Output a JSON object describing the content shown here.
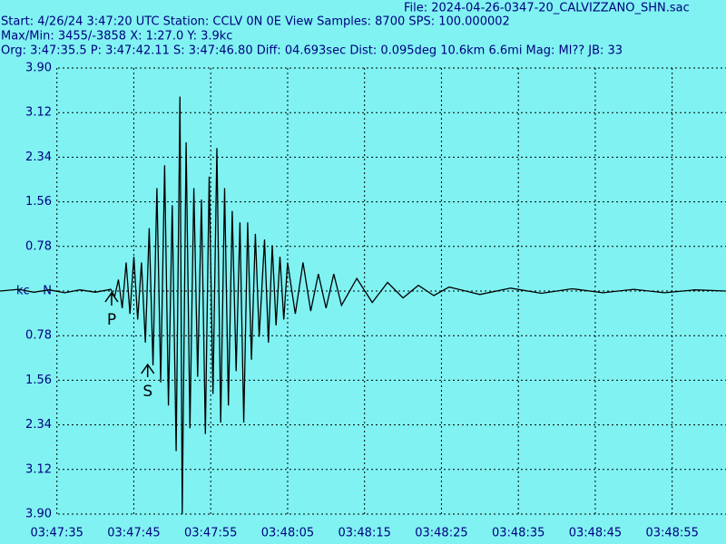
{
  "chart_data": {
    "type": "line",
    "header": {
      "file": "File: 2024-04-26-0347-20_CALVIZZANO_SHN.sac",
      "start": "Start: 4/26/24  3:47:20 UTC Station: CCLV 0N 0E View Samples: 8700  SPS: 100.000002",
      "maxmin": "Max/Min: 3455/-3858 X: 1:27.0 Y: 3.9kc",
      "origin": "Org: 3:47:35.5 P: 3:47:42.11 S: 3:47:46.80 Diff: 04.693sec Dist: 0.095deg 10.6km 6.6mi  Mag: Ml?? JB: 33"
    },
    "y_unit": "kc",
    "color": "#000000",
    "grid": true,
    "xlim": [
      7.6,
      102
    ],
    "ylim": [
      -3.9,
      3.9
    ],
    "xticks": [
      {
        "value": 15,
        "label": "03:47:35"
      },
      {
        "value": 25,
        "label": "03:47:45"
      },
      {
        "value": 35,
        "label": "03:47:55"
      },
      {
        "value": 45,
        "label": "03:48:05"
      },
      {
        "value": 55,
        "label": "03:48:15"
      },
      {
        "value": 65,
        "label": "03:48:25"
      },
      {
        "value": 75,
        "label": "03:48:35"
      },
      {
        "value": 85,
        "label": "03:48:45"
      },
      {
        "value": 95,
        "label": "03:48:55"
      }
    ],
    "yticks": [
      {
        "value": 3.9,
        "label": "3.90"
      },
      {
        "value": 3.12,
        "label": "3.12"
      },
      {
        "value": 2.34,
        "label": "2.34"
      },
      {
        "value": 1.56,
        "label": "1.56"
      },
      {
        "value": 0.78,
        "label": "0.78"
      },
      {
        "value": 0,
        "label": "N"
      },
      {
        "value": -0.78,
        "label": "0.78"
      },
      {
        "value": -1.56,
        "label": "1.56"
      },
      {
        "value": -2.34,
        "label": "2.34"
      },
      {
        "value": -3.12,
        "label": "3.12"
      },
      {
        "value": -3.9,
        "label": "3.90"
      }
    ],
    "picks": [
      {
        "label": "P",
        "x": 22.11
      },
      {
        "label": "S",
        "x": 26.8
      }
    ],
    "x": [
      7.6,
      10,
      12,
      14,
      16,
      18,
      20,
      22,
      22.5,
      23,
      23.5,
      24,
      24.5,
      25,
      25.5,
      26,
      26.5,
      27,
      27.5,
      28,
      28.5,
      29,
      29.5,
      30,
      30.5,
      31,
      31.3,
      31.8,
      32.3,
      32.8,
      33.3,
      33.8,
      34.3,
      34.8,
      35.3,
      35.8,
      36.3,
      36.8,
      37.3,
      37.8,
      38.3,
      38.8,
      39.3,
      39.8,
      40.3,
      40.8,
      41.3,
      42,
      42.5,
      43,
      43.5,
      44,
      44.5,
      45,
      46,
      47,
      48,
      49,
      50,
      51,
      52,
      54,
      56,
      58,
      60,
      62,
      64,
      66,
      70,
      74,
      78,
      82,
      86,
      90,
      94,
      98,
      102
    ],
    "values": [
      0,
      0.03,
      -0.02,
      0.02,
      -0.03,
      0.02,
      -0.02,
      0.03,
      -0.1,
      0.2,
      -0.3,
      0.5,
      -0.4,
      0.6,
      -0.5,
      0.5,
      -0.9,
      1.1,
      -1.3,
      1.8,
      -1.6,
      2.2,
      -2.0,
      1.5,
      -2.8,
      3.4,
      -3.9,
      2.6,
      -2.4,
      1.8,
      -1.5,
      1.6,
      -2.5,
      2.0,
      -1.8,
      2.5,
      -2.3,
      1.8,
      -2.0,
      1.4,
      -1.4,
      1.2,
      -2.3,
      1.2,
      -1.2,
      1.0,
      -0.8,
      0.9,
      -0.9,
      0.8,
      -0.6,
      0.6,
      -0.5,
      0.5,
      -0.4,
      0.5,
      -0.35,
      0.3,
      -0.3,
      0.3,
      -0.25,
      0.22,
      -0.2,
      0.15,
      -0.12,
      0.1,
      -0.08,
      0.07,
      -0.06,
      0.05,
      -0.04,
      0.04,
      -0.03,
      0.03,
      -0.03,
      0.02,
      0
    ]
  }
}
